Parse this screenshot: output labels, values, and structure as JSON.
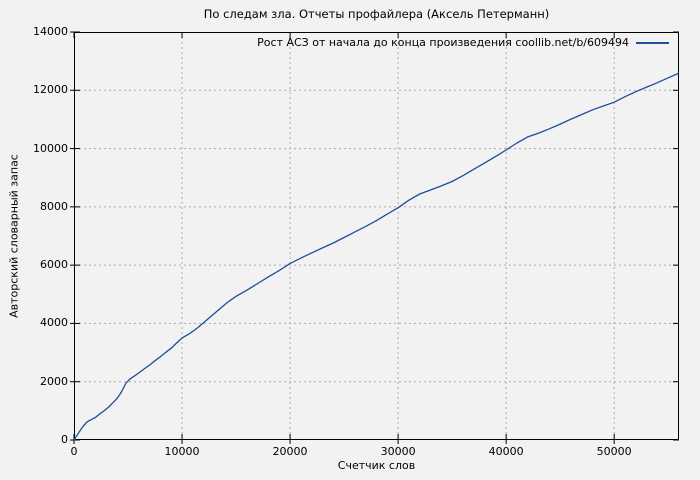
{
  "window": {
    "background": "#f2f2f2"
  },
  "chart_data": {
    "type": "line",
    "title": "По следам зла. Отчеты профайлера (Аксель Петерманн)",
    "xlabel": "Счетчик слов",
    "ylabel": "Авторский словарный запас",
    "xlim": [
      0,
      56000
    ],
    "ylim": [
      0,
      14000
    ],
    "xticks": [
      0,
      10000,
      20000,
      30000,
      40000,
      50000
    ],
    "yticks": [
      0,
      2000,
      4000,
      6000,
      8000,
      10000,
      12000,
      14000
    ],
    "grid": true,
    "grid_style": "dotted",
    "legend_position": "top-right-inside",
    "colors": {
      "line": "#1e4d9b",
      "grid": "#aaaaaa",
      "axis": "#000000",
      "text": "#000000",
      "background": "#f2f2f2"
    },
    "series": [
      {
        "name": "Рост АСЗ от начала до конца произведения coollib.net/b/609494",
        "points": [
          [
            0,
            0
          ],
          [
            400,
            230
          ],
          [
            800,
            450
          ],
          [
            1200,
            620
          ],
          [
            1600,
            700
          ],
          [
            2000,
            780
          ],
          [
            2400,
            900
          ],
          [
            2800,
            1010
          ],
          [
            3200,
            1130
          ],
          [
            3600,
            1280
          ],
          [
            4000,
            1430
          ],
          [
            4400,
            1650
          ],
          [
            4800,
            1950
          ],
          [
            5200,
            2100
          ],
          [
            5600,
            2200
          ],
          [
            6000,
            2300
          ],
          [
            6500,
            2440
          ],
          [
            7000,
            2570
          ],
          [
            7500,
            2720
          ],
          [
            8000,
            2860
          ],
          [
            8500,
            3010
          ],
          [
            9000,
            3150
          ],
          [
            9500,
            3330
          ],
          [
            10000,
            3500
          ],
          [
            10700,
            3650
          ],
          [
            11400,
            3840
          ],
          [
            12100,
            4060
          ],
          [
            12800,
            4280
          ],
          [
            13500,
            4500
          ],
          [
            14200,
            4720
          ],
          [
            15000,
            4930
          ],
          [
            16000,
            5140
          ],
          [
            17000,
            5370
          ],
          [
            18000,
            5600
          ],
          [
            19000,
            5820
          ],
          [
            20000,
            6060
          ],
          [
            21000,
            6240
          ],
          [
            22000,
            6420
          ],
          [
            23000,
            6590
          ],
          [
            24000,
            6760
          ],
          [
            25000,
            6950
          ],
          [
            26000,
            7140
          ],
          [
            27000,
            7330
          ],
          [
            28000,
            7530
          ],
          [
            29000,
            7750
          ],
          [
            30000,
            7970
          ],
          [
            31000,
            8230
          ],
          [
            32000,
            8440
          ],
          [
            33000,
            8580
          ],
          [
            34000,
            8720
          ],
          [
            35000,
            8870
          ],
          [
            36000,
            9070
          ],
          [
            37000,
            9290
          ],
          [
            38000,
            9500
          ],
          [
            39000,
            9720
          ],
          [
            40000,
            9950
          ],
          [
            41000,
            10190
          ],
          [
            42000,
            10400
          ],
          [
            43000,
            10530
          ],
          [
            44000,
            10680
          ],
          [
            45000,
            10840
          ],
          [
            46000,
            11010
          ],
          [
            47000,
            11170
          ],
          [
            48000,
            11330
          ],
          [
            49000,
            11460
          ],
          [
            50000,
            11590
          ],
          [
            51000,
            11780
          ],
          [
            52000,
            11950
          ],
          [
            53000,
            12110
          ],
          [
            54000,
            12260
          ],
          [
            55000,
            12430
          ],
          [
            56000,
            12590
          ]
        ]
      }
    ]
  }
}
